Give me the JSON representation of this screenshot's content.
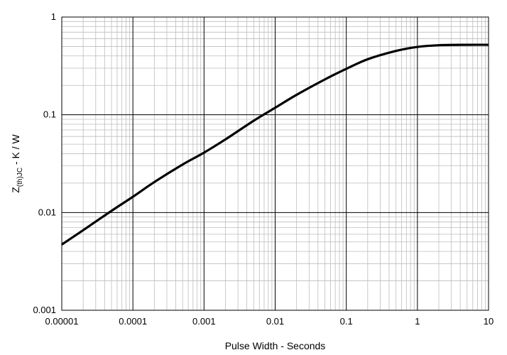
{
  "chart_data": {
    "type": "line",
    "xlabel": "Pulse Width - Seconds",
    "ylabel": {
      "main": "Z",
      "subscript": "(th)JC",
      "suffix": " - K / W"
    },
    "x_scale": "log",
    "y_scale": "log",
    "xlim": [
      1e-05,
      10
    ],
    "ylim": [
      0.001,
      1
    ],
    "x_ticks": [
      "0.00001",
      "0.0001",
      "0.001",
      "0.01",
      "0.1",
      "1",
      "10"
    ],
    "y_ticks": [
      "0.001",
      "0.01",
      "0.1",
      "1"
    ],
    "grid": true,
    "series": [
      {
        "color": "#000000",
        "x": [
          1e-05,
          2e-05,
          5e-05,
          0.0001,
          0.0002,
          0.0005,
          0.001,
          0.002,
          0.005,
          0.01,
          0.02,
          0.05,
          0.1,
          0.2,
          0.5,
          1,
          2,
          5,
          10
        ],
        "y": [
          0.0047,
          0.0066,
          0.0104,
          0.0145,
          0.0205,
          0.031,
          0.041,
          0.056,
          0.087,
          0.118,
          0.16,
          0.23,
          0.295,
          0.37,
          0.45,
          0.495,
          0.515,
          0.52,
          0.52
        ]
      }
    ]
  }
}
